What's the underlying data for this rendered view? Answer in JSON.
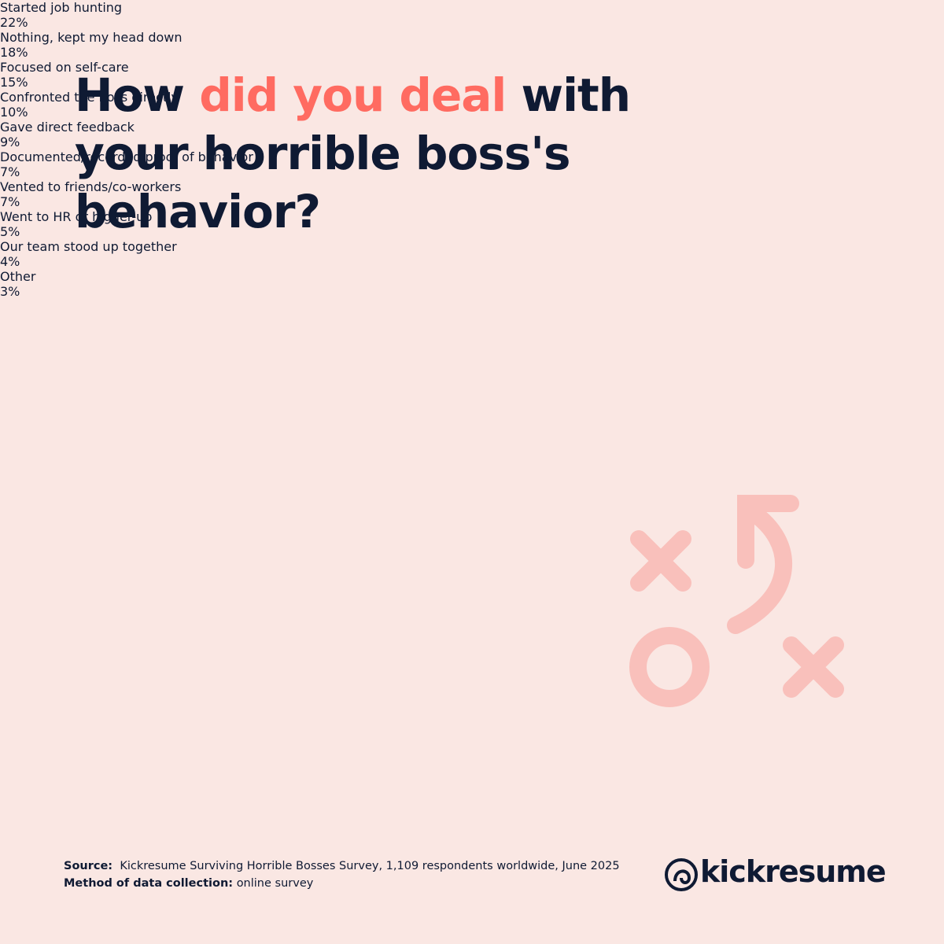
{
  "chart_data": {
    "type": "bar",
    "orientation": "horizontal",
    "title": [
      "How",
      "did you deal",
      "with your horrible boss's behavior?"
    ],
    "title_highlight": [
      false,
      true,
      false
    ],
    "categories": [
      "Started job hunting",
      "Nothing, kept my head down",
      "Focused on self-care",
      "Confronted the boss directly",
      "Gave direct feedback",
      "Documented/recorded proof of behavior",
      "Vented to friends/co-workers",
      "Went to HR or higher-up",
      "Our team stood up together",
      "Other"
    ],
    "values": [
      22,
      18,
      15,
      10,
      9,
      7,
      7,
      5,
      4,
      3
    ],
    "value_labels": [
      "22%",
      "18%",
      "15%",
      "10%",
      "9%",
      "7%",
      "7%",
      "5%",
      "4%",
      "3%"
    ],
    "color": "#ff5f57",
    "highlight_color": "#ff6b61"
  },
  "footer": {
    "source_label": "Source:",
    "source_text": "Kickresume Surviving Horrible Bosses Survey, 1,109 respondents worldwide, June 2025",
    "method_label": "Method of data collection:",
    "method_text": "online survey",
    "brand": "kickresume"
  }
}
